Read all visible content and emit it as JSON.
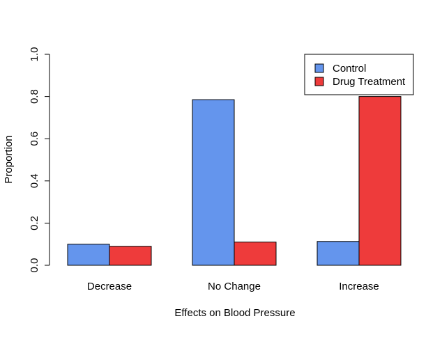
{
  "chart_data": {
    "type": "bar",
    "mode": "grouped",
    "categories": [
      "Decrease",
      "No Change",
      "Increase"
    ],
    "series": [
      {
        "name": "Control",
        "values": [
          0.1,
          0.785,
          0.113
        ],
        "color": "#6495ED"
      },
      {
        "name": "Drug Treatment",
        "values": [
          0.09,
          0.11,
          0.8
        ],
        "color": "#EE3B3B"
      }
    ],
    "title": "",
    "xlabel": "Effects on Blood Pressure",
    "ylabel": "Proportion",
    "ylim": [
      0,
      1.0
    ],
    "yticks": [
      0.0,
      0.2,
      0.4,
      0.6,
      0.8,
      1.0
    ],
    "ytick_labels": [
      "0.0",
      "0.2",
      "0.4",
      "0.6",
      "0.8",
      "1.0"
    ],
    "grid": false,
    "legend": {
      "position": "top-right",
      "entries": [
        "Control",
        "Drug Treatment"
      ]
    }
  }
}
